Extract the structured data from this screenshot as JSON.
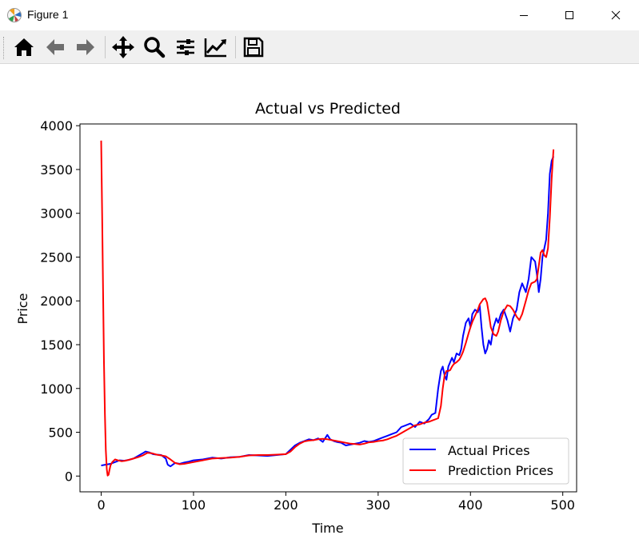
{
  "window": {
    "title": "Figure 1",
    "controls": [
      "minimize",
      "maximize",
      "close"
    ]
  },
  "toolbar": {
    "buttons": [
      {
        "icon": "home-icon",
        "tooltip": "Home"
      },
      {
        "icon": "back-arrow-icon",
        "tooltip": "Back"
      },
      {
        "icon": "forward-arrow-icon",
        "tooltip": "Forward"
      },
      {
        "icon": "pan-icon",
        "tooltip": "Pan"
      },
      {
        "icon": "zoom-icon",
        "tooltip": "Zoom"
      },
      {
        "icon": "subplots-icon",
        "tooltip": "Subplots"
      },
      {
        "icon": "edit-axes-icon",
        "tooltip": "Customize"
      },
      {
        "icon": "save-icon",
        "tooltip": "Save"
      }
    ]
  },
  "chart_data": {
    "type": "line",
    "title": "Actual vs Predicted",
    "xlabel": "Time",
    "ylabel": "Price",
    "xlim": [
      -23,
      515
    ],
    "ylim": [
      -180,
      4020
    ],
    "xticks": [
      0,
      100,
      200,
      300,
      400,
      500
    ],
    "yticks": [
      0,
      500,
      1000,
      1500,
      2000,
      2500,
      3000,
      3500,
      4000
    ],
    "grid": false,
    "legend": "lower-right",
    "series": [
      {
        "name": "Actual Prices",
        "color": "#0000ff",
        "x": [
          0,
          5,
          10,
          15,
          20,
          25,
          30,
          35,
          40,
          45,
          48,
          52,
          56,
          60,
          65,
          70,
          72,
          75,
          80,
          85,
          90,
          95,
          100,
          110,
          120,
          130,
          140,
          150,
          160,
          170,
          180,
          190,
          200,
          205,
          210,
          215,
          220,
          225,
          230,
          235,
          240,
          245,
          248,
          252,
          255,
          260,
          265,
          270,
          275,
          280,
          285,
          290,
          295,
          300,
          305,
          310,
          315,
          320,
          325,
          330,
          335,
          340,
          345,
          350,
          355,
          358,
          362,
          365,
          368,
          370,
          372,
          374,
          376,
          378,
          380,
          382,
          385,
          388,
          390,
          392,
          395,
          398,
          400,
          402,
          405,
          408,
          410,
          412,
          414,
          416,
          418,
          420,
          422,
          425,
          428,
          430,
          433,
          436,
          440,
          443,
          446,
          450,
          453,
          456,
          460,
          463,
          466,
          470,
          472,
          474,
          476,
          478,
          480,
          482,
          484,
          486,
          488,
          490
        ],
        "y": [
          120,
          130,
          140,
          160,
          180,
          175,
          185,
          200,
          230,
          260,
          280,
          270,
          250,
          245,
          240,
          200,
          130,
          110,
          150,
          140,
          155,
          165,
          180,
          190,
          210,
          200,
          215,
          220,
          240,
          235,
          230,
          240,
          250,
          300,
          350,
          380,
          400,
          420,
          410,
          430,
          390,
          470,
          420,
          400,
          390,
          380,
          350,
          360,
          370,
          380,
          400,
          390,
          400,
          420,
          440,
          460,
          480,
          500,
          560,
          580,
          600,
          560,
          620,
          600,
          650,
          700,
          720,
          1000,
          1200,
          1250,
          1150,
          1100,
          1250,
          1300,
          1350,
          1300,
          1400,
          1380,
          1450,
          1600,
          1750,
          1800,
          1700,
          1850,
          1900,
          1870,
          1950,
          1700,
          1500,
          1400,
          1450,
          1550,
          1500,
          1700,
          1800,
          1750,
          1850,
          1900,
          1780,
          1650,
          1800,
          1900,
          2100,
          2200,
          2100,
          2250,
          2500,
          2450,
          2300,
          2100,
          2250,
          2500,
          2600,
          2700,
          3000,
          3450,
          3600,
          3650
        ]
      },
      {
        "name": "Prediction Prices",
        "color": "#ff0000",
        "x": [
          0,
          1,
          2,
          3,
          4,
          5,
          6,
          7,
          8,
          9,
          10,
          12,
          15,
          18,
          22,
          26,
          30,
          35,
          40,
          45,
          50,
          55,
          60,
          65,
          70,
          75,
          80,
          85,
          90,
          95,
          100,
          110,
          120,
          130,
          140,
          150,
          160,
          170,
          180,
          190,
          200,
          205,
          210,
          215,
          220,
          225,
          230,
          235,
          240,
          245,
          250,
          255,
          260,
          265,
          270,
          275,
          280,
          285,
          290,
          295,
          300,
          305,
          310,
          315,
          320,
          325,
          330,
          335,
          340,
          345,
          350,
          355,
          360,
          365,
          368,
          370,
          372,
          374,
          376,
          378,
          380,
          382,
          385,
          388,
          390,
          392,
          395,
          398,
          400,
          402,
          405,
          408,
          410,
          412,
          414,
          416,
          418,
          420,
          422,
          425,
          428,
          430,
          433,
          436,
          440,
          443,
          446,
          450,
          453,
          456,
          460,
          463,
          466,
          470,
          472,
          474,
          476,
          478,
          480,
          482,
          484,
          486,
          488,
          490
        ],
        "y": [
          3830,
          3000,
          2100,
          1300,
          700,
          300,
          80,
          5,
          15,
          70,
          120,
          160,
          190,
          180,
          170,
          175,
          185,
          200,
          215,
          235,
          265,
          260,
          245,
          235,
          225,
          190,
          150,
          135,
          140,
          150,
          160,
          180,
          200,
          205,
          210,
          220,
          235,
          240,
          240,
          245,
          250,
          280,
          330,
          370,
          395,
          405,
          410,
          420,
          425,
          420,
          410,
          400,
          390,
          380,
          370,
          365,
          360,
          370,
          385,
          390,
          400,
          405,
          420,
          440,
          460,
          490,
          520,
          550,
          580,
          590,
          610,
          620,
          640,
          660,
          800,
          1000,
          1150,
          1200,
          1200,
          1210,
          1250,
          1280,
          1300,
          1330,
          1370,
          1420,
          1520,
          1630,
          1700,
          1760,
          1830,
          1900,
          1960,
          1990,
          2020,
          2030,
          1980,
          1850,
          1700,
          1620,
          1600,
          1650,
          1780,
          1880,
          1950,
          1940,
          1900,
          1820,
          1780,
          1850,
          2000,
          2120,
          2200,
          2220,
          2250,
          2400,
          2550,
          2580,
          2520,
          2500,
          2600,
          2950,
          3400,
          3730
        ]
      }
    ]
  }
}
